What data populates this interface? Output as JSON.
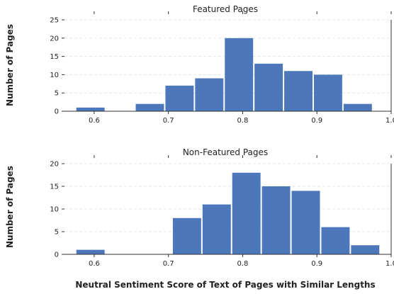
{
  "chart_data": [
    {
      "type": "bar",
      "title": "Featured Pages",
      "ylabel": "Number of Pages",
      "xlabel": "",
      "bin_width": 0.04,
      "x": [
        0.595,
        0.675,
        0.715,
        0.755,
        0.795,
        0.835,
        0.875,
        0.915,
        0.955
      ],
      "values": [
        1,
        2,
        7,
        9,
        20,
        13,
        11,
        10,
        2
      ],
      "xlim": [
        0.56,
        1.0
      ],
      "ylim": [
        0,
        25
      ],
      "xticks": [
        "0.6",
        "0.7",
        "0.8",
        "0.9",
        "1.0"
      ],
      "yticks": [
        "0",
        "5",
        "10",
        "15",
        "20",
        "25"
      ],
      "grid": true,
      "color": "#4c78bb"
    },
    {
      "type": "bar",
      "title": "Non-Featured Pages",
      "ylabel": "Number of Pages",
      "xlabel": "Neutral Sentiment Score of Text of Pages with Similar Lengths",
      "bin_width": 0.04,
      "x": [
        0.595,
        0.725,
        0.765,
        0.805,
        0.845,
        0.885,
        0.925,
        0.965
      ],
      "values": [
        1,
        8,
        11,
        18,
        15,
        14,
        6,
        2
      ],
      "xlim": [
        0.56,
        1.0
      ],
      "ylim": [
        0,
        20
      ],
      "xticks": [
        "0.6",
        "0.7",
        "0.8",
        "0.9",
        "1.0"
      ],
      "yticks": [
        "0",
        "5",
        "10",
        "15",
        "20"
      ],
      "grid": true,
      "color": "#4c78bb"
    }
  ]
}
